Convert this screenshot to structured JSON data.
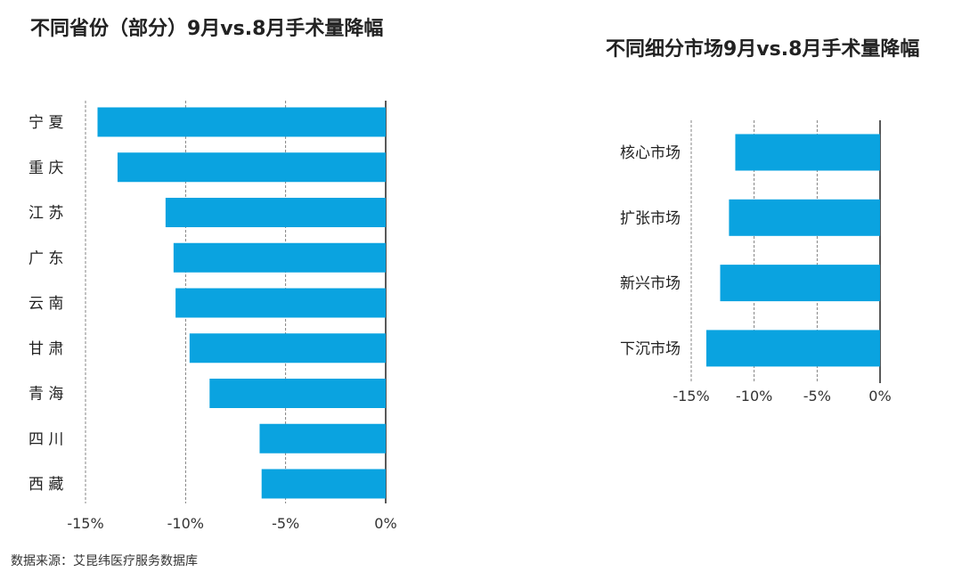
{
  "chart_data": [
    {
      "type": "bar",
      "orientation": "horizontal",
      "title": "不同省份（部分）9月vs.8月手术量降幅",
      "categories": [
        "宁 夏",
        "重 庆",
        "江 苏",
        "广 东",
        "云 南",
        "甘 肃",
        "青 海",
        "四 川",
        "西 藏"
      ],
      "values": [
        -14.4,
        -13.4,
        -11.0,
        -10.6,
        -10.5,
        -9.8,
        -8.8,
        -6.3,
        -6.2
      ],
      "xlim": [
        -15,
        0
      ],
      "xticks": [
        -15,
        -10,
        -5,
        0
      ],
      "xtick_labels": [
        "-15%",
        "-10%",
        "-5%",
        "0%"
      ],
      "grid": "vertical dashed",
      "bar_color": "#0aa3e0"
    },
    {
      "type": "bar",
      "orientation": "horizontal",
      "title": "不同细分市场9月vs.8月手术量降幅",
      "categories": [
        "核心市场",
        "扩张市场",
        "新兴市场",
        "下沉市场"
      ],
      "values": [
        -11.5,
        -12.0,
        -12.7,
        -13.8
      ],
      "xlim": [
        -15,
        0
      ],
      "xticks": [
        -15,
        -10,
        -5,
        0
      ],
      "xtick_labels": [
        "-15%",
        "-10%",
        "-5%",
        "0%"
      ],
      "grid": "vertical dashed",
      "bar_color": "#0aa3e0"
    }
  ],
  "source_note": "数据来源：艾昆纬医疗服务数据库"
}
